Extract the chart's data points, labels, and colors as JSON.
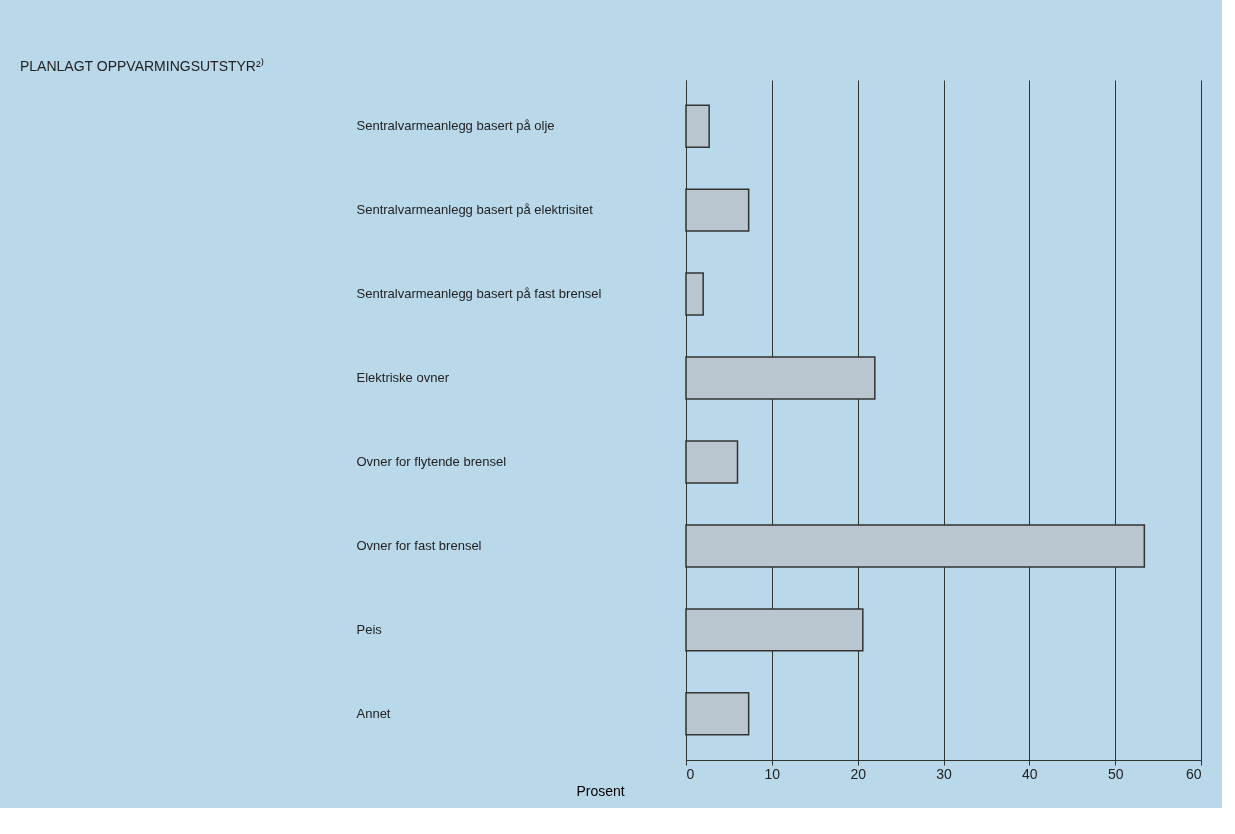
{
  "chart_data": {
    "type": "bar",
    "orientation": "horizontal",
    "title": "PLANLAGT OPPVARMINGSUTSTYR²⁾",
    "xlabel": "Prosent",
    "categories": [
      "Sentralvarmeanlegg basert på olje",
      "Sentralvarmeanlegg basert på elektrisitet",
      "Sentralvarmeanlegg basert på fast brensel",
      "Elektriske ovner",
      "Ovner for flytende brensel",
      "Ovner for fast brensel",
      "Peis",
      "Annet"
    ],
    "values": [
      2.7,
      7.3,
      2.0,
      22.0,
      6.0,
      53.4,
      20.6,
      7.3
    ],
    "color": "#b9c6cf",
    "xlim": [
      0,
      60
    ],
    "xticks": [
      0,
      10,
      20,
      30,
      40,
      50,
      60
    ],
    "grid": "x"
  }
}
